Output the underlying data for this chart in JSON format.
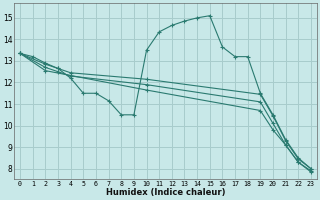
{
  "xlabel": "Humidex (Indice chaleur)",
  "xlim": [
    -0.5,
    23.5
  ],
  "ylim": [
    7.5,
    15.7
  ],
  "xticks": [
    0,
    1,
    2,
    3,
    4,
    5,
    6,
    7,
    8,
    9,
    10,
    11,
    12,
    13,
    14,
    15,
    16,
    17,
    18,
    19,
    20,
    21,
    22,
    23
  ],
  "yticks": [
    8,
    9,
    10,
    11,
    12,
    13,
    14,
    15
  ],
  "bg_color": "#c8e8e8",
  "grid_color": "#a8cccc",
  "line_color": "#2a7a70",
  "lines": [
    {
      "x": [
        0,
        1,
        2,
        3,
        4,
        5,
        6,
        7,
        8,
        9,
        10,
        11,
        12,
        13,
        14,
        15,
        16,
        17,
        18,
        19,
        20,
        21,
        22,
        23
      ],
      "y": [
        13.35,
        13.2,
        12.9,
        12.65,
        12.2,
        11.5,
        11.5,
        11.15,
        10.5,
        10.5,
        13.5,
        14.35,
        14.65,
        14.85,
        15.0,
        15.1,
        13.65,
        13.2,
        13.2,
        11.5,
        10.5,
        9.35,
        8.5,
        8.0
      ]
    },
    {
      "x": [
        0,
        2,
        3,
        4,
        10,
        19,
        20,
        21,
        22,
        23
      ],
      "y": [
        13.35,
        12.85,
        12.65,
        12.45,
        12.15,
        11.45,
        10.45,
        9.3,
        8.45,
        8.0
      ]
    },
    {
      "x": [
        0,
        2,
        3,
        4,
        10,
        19,
        20,
        21,
        22,
        23
      ],
      "y": [
        13.35,
        12.7,
        12.5,
        12.3,
        11.9,
        11.1,
        10.1,
        9.1,
        8.3,
        7.9
      ]
    },
    {
      "x": [
        0,
        2,
        10,
        19,
        20,
        21,
        22,
        23
      ],
      "y": [
        13.35,
        12.55,
        11.65,
        10.7,
        9.8,
        9.1,
        8.3,
        7.85
      ]
    }
  ]
}
